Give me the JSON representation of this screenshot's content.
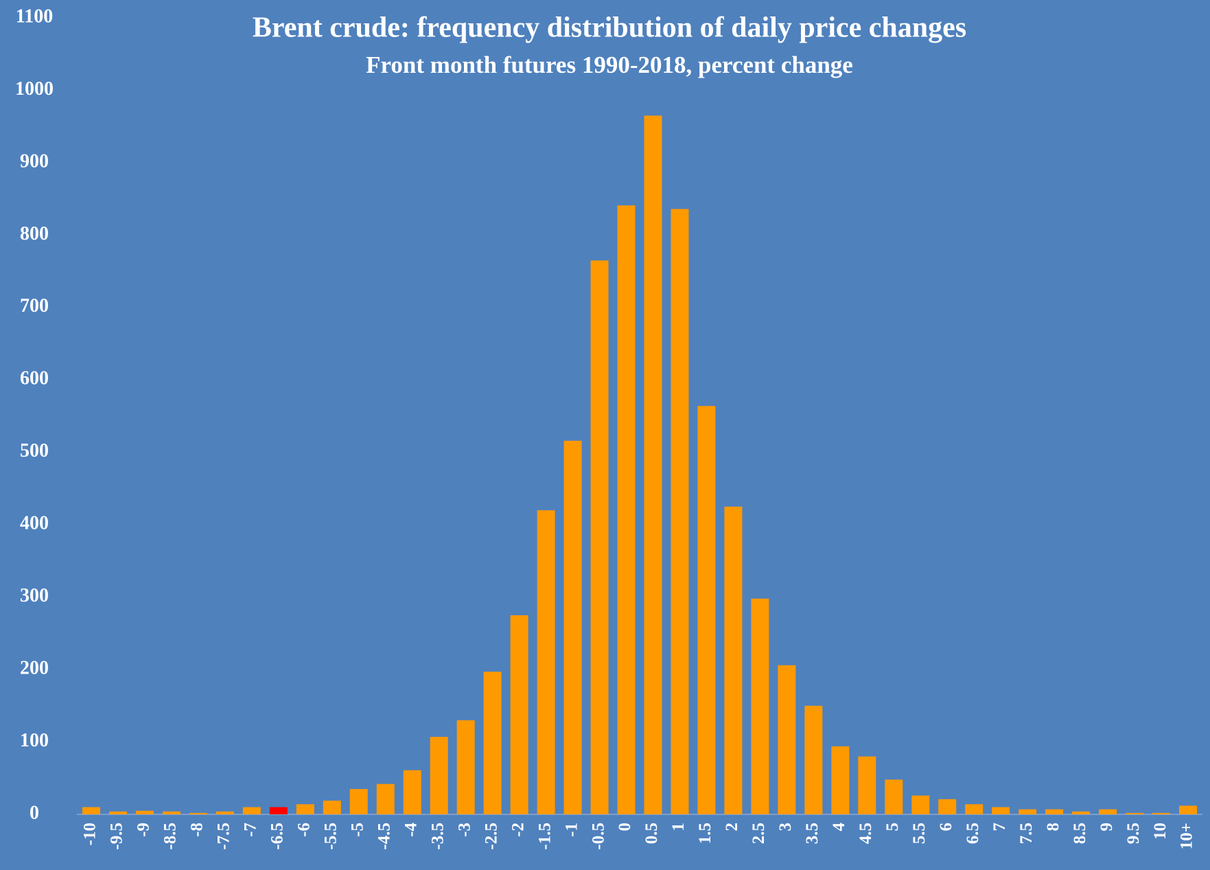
{
  "chart_data": {
    "type": "bar",
    "title": "Brent crude: frequency distribution of daily price changes",
    "subtitle": "Front month futures 1990-2018, percent change",
    "categories": [
      "-10",
      "-9.5",
      "-9",
      "-8.5",
      "-8",
      "-7.5",
      "-7",
      "-6.5",
      "-6",
      "-5.5",
      "-5",
      "-4.5",
      "-4",
      "-3.5",
      "-3",
      "-2.5",
      "-2",
      "-1.5",
      "-1",
      "-0.5",
      "0",
      "0.5",
      "1",
      "1.5",
      "2",
      "2.5",
      "3",
      "3.5",
      "4",
      "4.5",
      "5",
      "5.5",
      "6",
      "6.5",
      "7",
      "7.5",
      "8",
      "8.5",
      "9",
      "9.5",
      "10",
      "10+"
    ],
    "values": [
      10,
      4,
      5,
      4,
      2,
      4,
      10,
      10,
      14,
      19,
      35,
      42,
      61,
      107,
      130,
      197,
      275,
      420,
      516,
      765,
      841,
      965,
      836,
      564,
      425,
      298,
      206,
      150,
      94,
      80,
      48,
      26,
      21,
      14,
      10,
      7,
      7,
      4,
      7,
      2,
      2,
      12
    ],
    "colors": [
      "#ff9900",
      "#ff9900",
      "#ff9900",
      "#ff9900",
      "#ff9900",
      "#ff9900",
      "#ff9900",
      "#ff0000",
      "#ff9900",
      "#ff9900",
      "#ff9900",
      "#ff9900",
      "#ff9900",
      "#ff9900",
      "#ff9900",
      "#ff9900",
      "#ff9900",
      "#ff9900",
      "#ff9900",
      "#ff9900",
      "#ff9900",
      "#ff9900",
      "#ff9900",
      "#ff9900",
      "#ff9900",
      "#ff9900",
      "#ff9900",
      "#ff9900",
      "#ff9900",
      "#ff9900",
      "#ff9900",
      "#ff9900",
      "#ff9900",
      "#ff9900",
      "#ff9900",
      "#ff9900",
      "#ff9900",
      "#ff9900",
      "#ff9900",
      "#ff9900",
      "#ff9900",
      "#ff9900"
    ],
    "ylim": [
      0,
      1100
    ],
    "yticks": [
      0,
      100,
      200,
      300,
      400,
      500,
      600,
      700,
      800,
      900,
      1000,
      1100
    ],
    "grid": false
  }
}
